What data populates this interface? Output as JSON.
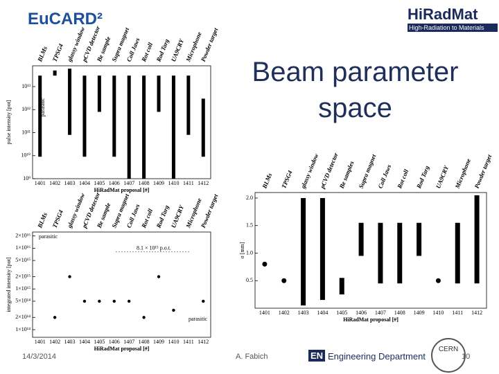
{
  "slide": {
    "title": "Beam parameter space",
    "logo_left": "EuCARD²",
    "logo_right": "HiRadMat",
    "logo_right_sub": "High-Radiation to Materials",
    "date": "14/3/2014",
    "author": "A. Fabich",
    "footer_logo": "EN",
    "footer_dept": "Engineering Department",
    "cern": "CERN",
    "page": "10"
  },
  "chart_data": [
    {
      "type": "range",
      "log_scale": true,
      "x_label": "HiRadMat proposal [#]",
      "y_label": "pulse intensity [pot]",
      "categories": [
        "1401",
        "1402",
        "1403",
        "1404",
        "1405",
        "1406",
        "1407",
        "1408",
        "1409",
        "1410",
        "1411",
        "1412"
      ],
      "top_labels": [
        "BLMs",
        "TPSG4",
        "glassy window",
        "pCVD detector",
        "Be sample",
        "Supra magnet",
        "Coll Jaws",
        "Rot coll",
        "Rod Targ",
        "UA9CRY",
        "Microphone",
        "Powder target"
      ],
      "low": [
        9000000000.0,
        30000000000000.0,
        80000000000.0,
        9000000000.0,
        800000000000.0,
        9000000000.0,
        1000000000.0,
        1000000000.0,
        800000000000.0,
        1000000000.0,
        80000000000.0,
        9000000000.0
      ],
      "high": [
        30000000000000.0,
        50000000000000.0,
        60000000000000.0,
        30000000000000.0,
        30000000000000.0,
        30000000000000.0,
        30000000000000.0,
        30000000000000.0,
        30000000000000.0,
        30000000000000.0,
        30000000000000.0,
        3000000000000.0
      ],
      "color": "#000000",
      "ylim": [
        1000000000.0,
        80000000000000.0
      ],
      "yticks": [
        {
          "value": 1000000000.0,
          "label": "10⁹"
        },
        {
          "value": 10000000000.0,
          "label": "10¹⁰"
        },
        {
          "value": 100000000000.0,
          "label": "10¹¹"
        },
        {
          "value": 1000000000000.0,
          "label": "10¹²"
        },
        {
          "value": 10000000000000.0,
          "label": "10¹³"
        }
      ],
      "annotations": [
        "parasitic"
      ]
    },
    {
      "type": "dot",
      "log_scale": true,
      "x_label": "HiRadMat proposal [#]",
      "y_label": "integrated intensity [pot]",
      "categories": [
        "1401",
        "1402",
        "1403",
        "1404",
        "1405",
        "1406",
        "1407",
        "1408",
        "1409",
        "1410",
        "1411",
        "1412"
      ],
      "top_labels": [
        "BLMs",
        "TPSG4",
        "glassy window",
        "pCVD detector",
        "Be sample",
        "Supra magnet",
        "Coll Jaws",
        "Rot coll",
        "Rod Targ",
        "UA9CRY",
        "Microphone",
        "Powder target"
      ],
      "values": [
        null,
        200000000000000.0,
        2000000000000000.0,
        500000000000000.0,
        500000000000000.0,
        500000000000000.0,
        500000000000000.0,
        200000000000000.0,
        2000000000000000.0,
        300000000000000.0,
        null,
        500000000000000.0
      ],
      "color": "#000000",
      "ylim": [
        65000000000000.0,
        2.5e+16
      ],
      "yticks": [
        {
          "value": 100000000000000.0,
          "label": "1×10¹⁴"
        },
        {
          "value": 200000000000000.0,
          "label": "2×10¹⁴"
        },
        {
          "value": 500000000000000.0,
          "label": "5×10¹⁴"
        },
        {
          "value": 1000000000000000.0,
          "label": "1×10¹⁵"
        },
        {
          "value": 2000000000000000.0,
          "label": "2×10¹⁵"
        },
        {
          "value": 5000000000000000.0,
          "label": "5×10¹⁵"
        },
        {
          "value": 1e+16,
          "label": "1×10¹⁶"
        },
        {
          "value": 2e+16,
          "label": "2×10¹⁶"
        }
      ],
      "reference_line": {
        "value": 8100000000000000.0,
        "label": "8.1 × 10¹⁵ p.o.t."
      },
      "annotations": [
        "parasitic",
        "parasitic"
      ]
    },
    {
      "type": "range",
      "log_scale": false,
      "x_label": "HiRadMat proposal [#]",
      "y_label": "σ [mm]",
      "categories": [
        "1401",
        "1402",
        "1403",
        "1404",
        "1405",
        "1406",
        "1407",
        "1408",
        "1409",
        "1410",
        "1411",
        "1412"
      ],
      "top_labels": [
        "BLMs",
        "TPSG4",
        "glassy window",
        "pCVD detector",
        "Be samples",
        "Supra magnet",
        "Coll Jaws",
        "Rot coll",
        "Rod Targ",
        "UA9CRY",
        "Microphone",
        "Powder target"
      ],
      "low": [
        null,
        null,
        0.05,
        0.15,
        0.25,
        0.95,
        0.45,
        0.45,
        0.95,
        null,
        0.45,
        0.45
      ],
      "high": [
        null,
        null,
        2.0,
        2.0,
        0.55,
        1.55,
        1.55,
        1.55,
        1.55,
        null,
        1.55,
        2.05
      ],
      "values": [
        0.8,
        0.5,
        null,
        null,
        null,
        null,
        null,
        null,
        null,
        0.5,
        null,
        null
      ],
      "color": "#000000",
      "ylim": [
        0,
        2.1
      ],
      "yticks": [
        0.5,
        {
          "value": 1,
          "label": "1.0"
        },
        1.5,
        {
          "value": 2,
          "label": "2.0"
        }
      ],
      "annotations": []
    }
  ]
}
